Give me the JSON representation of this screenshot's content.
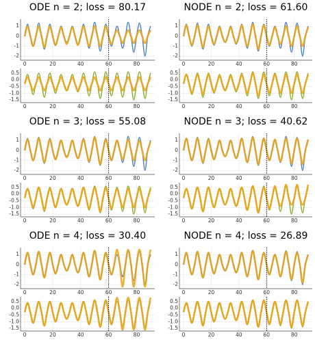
{
  "chart_data": {
    "type": "line",
    "x": [
      0,
      2,
      4,
      6,
      8,
      10,
      12,
      14,
      16,
      18,
      20,
      22,
      24,
      26,
      28,
      30,
      32,
      34,
      36,
      38,
      40,
      42,
      44,
      46,
      48,
      50,
      52,
      54,
      56,
      58,
      60,
      62,
      64,
      66,
      68,
      70,
      72,
      74,
      76,
      78,
      80,
      82,
      84,
      86,
      88,
      90
    ],
    "xlim": [
      -3,
      93
    ],
    "xticks": [
      0,
      20,
      40,
      60,
      80
    ],
    "vline": 60,
    "prediction_color": "#e8a317",
    "subplots": [
      {
        "ylim": [
          -2.4,
          1.7
        ],
        "yticks": [
          -2,
          -1,
          0,
          1
        ],
        "observed": {
          "color": "#4a7fc1",
          "values": [
            0,
            1.2,
            0,
            -1.0,
            0,
            1.3,
            0,
            -1.3,
            0,
            1.2,
            0,
            -0.9,
            0,
            1.0,
            0,
            -0.6,
            0,
            1.0,
            0,
            -0.8,
            0,
            1.2,
            0,
            -1.2,
            0,
            1.4,
            0,
            -1.5,
            0,
            1.2,
            0,
            -1.0,
            0,
            1.0,
            0,
            -1.2,
            0,
            1.4,
            0,
            -1.6,
            0,
            1.3,
            0,
            -2.0,
            0,
            1.0
          ]
        }
      },
      {
        "ylim": [
          -1.7,
          0.85
        ],
        "yticks": [
          0.5,
          {
            "value": 0,
            "label": "0.0"
          },
          -0.5,
          {
            "value": -1,
            "label": "-1.0"
          },
          -1.5
        ],
        "observed": {
          "color": "#8aac2c",
          "values": [
            -0.3,
            0.4,
            -0.3,
            -1.1,
            -0.3,
            0.5,
            -0.3,
            -1.3,
            -0.3,
            0.5,
            -0.3,
            -1.0,
            -0.3,
            0.4,
            -0.3,
            -0.8,
            -0.3,
            0.4,
            -0.3,
            -0.9,
            -0.3,
            0.5,
            -0.3,
            -1.2,
            -0.3,
            0.6,
            -0.3,
            -1.4,
            -0.3,
            0.6,
            -0.3,
            -1.2,
            -0.3,
            0.5,
            -0.3,
            -1.3,
            -0.3,
            0.6,
            -0.3,
            -1.5,
            -0.3,
            0.6,
            -0.3,
            -1.4,
            -0.3,
            0.5
          ]
        }
      }
    ],
    "panels": [
      {
        "title": "ODE n = 2; loss = 80.17",
        "predictions": [
          [
            0,
            1.0,
            0,
            -1.0,
            0,
            1.0,
            0,
            -1.1,
            0,
            1.0,
            0,
            -0.9,
            0,
            0.9,
            0,
            -0.8,
            0,
            0.9,
            0,
            -0.9,
            0,
            1.0,
            0,
            -1.0,
            0,
            1.0,
            0,
            -1.0,
            0,
            1.0,
            0,
            -0.8,
            0,
            0.6,
            0,
            -0.7,
            0,
            0.6,
            0,
            -0.7,
            0,
            0.6,
            0,
            -0.7,
            0,
            0.6
          ],
          [
            -0.3,
            0.2,
            -0.3,
            -0.8,
            -0.3,
            0.2,
            -0.3,
            -0.8,
            -0.3,
            0.2,
            -0.3,
            -0.8,
            -0.3,
            0.2,
            -0.3,
            -0.8,
            -0.3,
            0.2,
            -0.3,
            -0.8,
            -0.3,
            0.2,
            -0.3,
            -0.8,
            -0.3,
            0.2,
            -0.3,
            -0.8,
            -0.3,
            0.2,
            -0.3,
            -0.8,
            -0.3,
            0.2,
            -0.3,
            -0.8,
            -0.3,
            0.2,
            -0.3,
            -0.8,
            -0.3,
            0.2,
            -0.3,
            -0.8,
            -0.3,
            0.2
          ]
        ]
      },
      {
        "title": "NODE n = 2; loss = 61.60",
        "predictions": [
          [
            0,
            1.1,
            0,
            -0.9,
            0,
            1.1,
            0,
            -1.1,
            0,
            1.0,
            0,
            -0.8,
            0,
            0.9,
            0,
            -0.6,
            0,
            0.9,
            0,
            -0.7,
            0,
            1.1,
            0,
            -1.0,
            0,
            1.2,
            0,
            -1.3,
            0,
            1.1,
            0,
            -0.9,
            0,
            0.9,
            0,
            -0.8,
            0,
            1.0,
            0,
            -1.0,
            0,
            1.0,
            0,
            -1.0,
            0,
            0.9
          ],
          [
            -0.3,
            0.4,
            -0.3,
            -1.0,
            -0.3,
            0.4,
            -0.3,
            -1.1,
            -0.3,
            0.4,
            -0.3,
            -0.9,
            -0.3,
            0.3,
            -0.3,
            -0.8,
            -0.3,
            0.3,
            -0.3,
            -0.8,
            -0.3,
            0.4,
            -0.3,
            -1.0,
            -0.3,
            0.5,
            -0.3,
            -1.2,
            -0.3,
            0.4,
            -0.3,
            -1.0,
            -0.3,
            0.4,
            -0.3,
            -1.0,
            -0.3,
            0.4,
            -0.3,
            -1.0,
            -0.3,
            0.4,
            -0.3,
            -1.0,
            -0.3,
            0.4
          ]
        ]
      },
      {
        "title": "ODE n = 3; loss = 55.08",
        "predictions": [
          [
            0,
            1.1,
            0,
            -1.0,
            0,
            1.2,
            0,
            -1.2,
            0,
            1.1,
            0,
            -0.9,
            0,
            1.0,
            0,
            -0.7,
            0,
            1.0,
            0,
            -0.8,
            0,
            1.1,
            0,
            -1.1,
            0,
            1.3,
            0,
            -1.4,
            0,
            1.1,
            0,
            -1.0,
            0,
            1.0,
            0,
            -0.9,
            0,
            1.1,
            0,
            -1.0,
            0,
            1.0,
            0,
            -1.0,
            0,
            0.9
          ],
          [
            -0.3,
            0.4,
            -0.3,
            -1.0,
            -0.3,
            0.5,
            -0.3,
            -1.2,
            -0.3,
            0.4,
            -0.3,
            -1.0,
            -0.3,
            0.4,
            -0.3,
            -0.8,
            -0.3,
            0.4,
            -0.3,
            -0.9,
            -0.3,
            0.5,
            -0.3,
            -1.1,
            -0.3,
            0.5,
            -0.3,
            -1.3,
            -0.3,
            0.5,
            -0.3,
            -1.1,
            -0.3,
            0.4,
            -0.3,
            -1.0,
            -0.3,
            0.4,
            -0.3,
            -1.0,
            -0.3,
            0.4,
            -0.3,
            -1.0,
            -0.3,
            0.4
          ]
        ]
      },
      {
        "title": "NODE n = 3; loss = 40.62",
        "predictions": [
          [
            0,
            1.2,
            0,
            -1.0,
            0,
            1.2,
            0,
            -1.2,
            0,
            1.1,
            0,
            -0.9,
            0,
            1.0,
            0,
            -0.6,
            0,
            1.0,
            0,
            -0.8,
            0,
            1.2,
            0,
            -1.2,
            0,
            1.3,
            0,
            -1.4,
            0,
            1.2,
            0,
            -1.0,
            0,
            1.1,
            0,
            -1.1,
            0,
            1.2,
            0,
            -1.3,
            0,
            1.2,
            0,
            -1.4,
            0,
            1.1
          ],
          [
            -0.3,
            0.4,
            -0.3,
            -1.1,
            -0.3,
            0.5,
            -0.3,
            -1.3,
            -0.3,
            0.5,
            -0.3,
            -1.0,
            -0.3,
            0.4,
            -0.3,
            -0.8,
            -0.3,
            0.4,
            -0.3,
            -0.9,
            -0.3,
            0.5,
            -0.3,
            -1.2,
            -0.3,
            0.6,
            -0.3,
            -1.4,
            -0.3,
            0.5,
            -0.3,
            -1.1,
            -0.3,
            0.6,
            -0.3,
            -0.9,
            -0.3,
            0.7,
            -0.3,
            -0.8,
            -0.3,
            0.7,
            -0.3,
            -0.8,
            -0.3,
            0.7
          ]
        ]
      },
      {
        "title": "ODE n = 4; loss = 30.40",
        "predictions": [
          [
            0,
            1.2,
            0,
            -1.0,
            0,
            1.3,
            0,
            -1.3,
            0,
            1.2,
            0,
            -0.9,
            0,
            1.0,
            0,
            -0.6,
            0,
            1.0,
            0,
            -0.8,
            0,
            1.2,
            0,
            -1.2,
            0,
            1.4,
            0,
            -1.5,
            0,
            1.2,
            0,
            -1.0,
            0,
            1.5,
            0,
            -2.2,
            0,
            1.5,
            0,
            -2.2,
            0,
            1.5,
            0,
            -2.2,
            0,
            1.5
          ],
          [
            -0.3,
            0.4,
            -0.3,
            -1.1,
            -0.3,
            0.5,
            -0.3,
            -1.3,
            -0.3,
            0.5,
            -0.3,
            -1.0,
            -0.3,
            0.4,
            -0.3,
            -0.8,
            -0.3,
            0.4,
            -0.3,
            -0.9,
            -0.3,
            0.5,
            -0.3,
            -1.2,
            -0.3,
            0.6,
            -0.3,
            -1.4,
            -0.3,
            0.6,
            -0.3,
            -1.2,
            -0.3,
            0.8,
            -0.3,
            -1.6,
            -0.3,
            0.8,
            -0.3,
            -1.6,
            -0.3,
            0.8,
            -0.3,
            -1.6,
            -0.3,
            0.8
          ]
        ]
      },
      {
        "title": "NODE n = 4; loss = 26.89",
        "predictions": [
          [
            0,
            1.2,
            0,
            -1.0,
            0,
            1.3,
            0,
            -1.3,
            0,
            1.2,
            0,
            -0.9,
            0,
            1.0,
            0,
            -0.6,
            0,
            1.0,
            0,
            -0.8,
            0,
            1.2,
            0,
            -1.2,
            0,
            1.4,
            0,
            -1.5,
            0,
            1.2,
            0,
            -1.0,
            0,
            1.0,
            0,
            -1.2,
            0,
            1.3,
            0,
            -1.5,
            0,
            1.2,
            0,
            -1.8,
            0,
            1.0
          ],
          [
            -0.3,
            0.4,
            -0.3,
            -1.1,
            -0.3,
            0.5,
            -0.3,
            -1.3,
            -0.3,
            0.5,
            -0.3,
            -1.0,
            -0.3,
            0.4,
            -0.3,
            -0.8,
            -0.3,
            0.4,
            -0.3,
            -0.9,
            -0.3,
            0.5,
            -0.3,
            -1.2,
            -0.3,
            0.6,
            -0.3,
            -1.4,
            -0.3,
            0.6,
            -0.3,
            -1.2,
            -0.3,
            0.5,
            -0.3,
            -1.2,
            -0.3,
            0.6,
            -0.3,
            -1.4,
            -0.3,
            0.6,
            -0.3,
            -1.3,
            -0.3,
            0.5
          ]
        ]
      }
    ]
  }
}
